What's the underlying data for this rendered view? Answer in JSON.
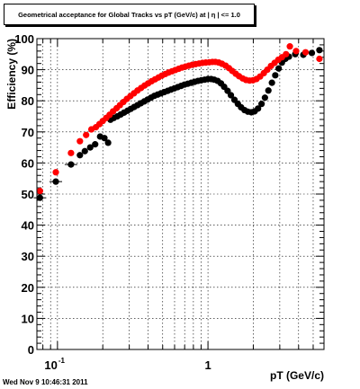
{
  "canvas": {
    "timestamp": "Wed Nov  9 10:46:31 2011"
  },
  "chart_data": {
    "type": "scatter",
    "title": "Geometrical acceptance for Global Tracks vs pT (GeV/c) at |  η  | <= 1.0",
    "xlabel": "pT (GeV/c)",
    "ylabel": "Efficiency (%)",
    "xscale": "log",
    "xlim": [
      0.073,
      5.9
    ],
    "ylim": [
      0,
      100
    ],
    "grid": true,
    "legend": "none",
    "x_ticks": [
      {
        "value": 0.1,
        "base": "10",
        "exp": "-1"
      },
      {
        "value": 1,
        "base": "1",
        "exp": ""
      }
    ],
    "y_ticks": [
      0,
      10,
      20,
      30,
      40,
      50,
      60,
      70,
      80,
      90,
      100
    ],
    "series": [
      {
        "color": "#000000",
        "points": [
          [
            0.0765,
            48.8
          ],
          [
            0.0975,
            54.0
          ],
          [
            0.123,
            59.5
          ],
          [
            0.141,
            62.5
          ],
          [
            0.152,
            63.8
          ],
          [
            0.165,
            65.0
          ],
          [
            0.178,
            66.0
          ],
          [
            0.192,
            68.5
          ],
          [
            0.205,
            68.0
          ],
          [
            0.217,
            66.5
          ],
          [
            0.225,
            73.9
          ],
          [
            0.237,
            74.5
          ],
          [
            0.25,
            75.0
          ],
          [
            0.263,
            75.6
          ],
          [
            0.277,
            76.2
          ],
          [
            0.292,
            76.8
          ],
          [
            0.307,
            77.4
          ],
          [
            0.323,
            78.0
          ],
          [
            0.34,
            78.6
          ],
          [
            0.358,
            79.2
          ],
          [
            0.377,
            79.8
          ],
          [
            0.397,
            80.4
          ],
          [
            0.418,
            81.0
          ],
          [
            0.44,
            81.6
          ],
          [
            0.463,
            82.0
          ],
          [
            0.487,
            82.4
          ],
          [
            0.513,
            82.8
          ],
          [
            0.54,
            83.2
          ],
          [
            0.568,
            83.6
          ],
          [
            0.598,
            84.0
          ],
          [
            0.63,
            84.4
          ],
          [
            0.663,
            84.8
          ],
          [
            0.698,
            85.2
          ],
          [
            0.735,
            85.5
          ],
          [
            0.774,
            85.8
          ],
          [
            0.815,
            86.1
          ],
          [
            0.858,
            86.4
          ],
          [
            0.903,
            86.6
          ],
          [
            0.95,
            86.8
          ],
          [
            1.0,
            87.0
          ],
          [
            1.05,
            87.0
          ],
          [
            1.1,
            86.8
          ],
          [
            1.16,
            86.4
          ],
          [
            1.22,
            85.6
          ],
          [
            1.28,
            84.5
          ],
          [
            1.35,
            83.2
          ],
          [
            1.42,
            81.8
          ],
          [
            1.5,
            80.3
          ],
          [
            1.58,
            79.0
          ],
          [
            1.66,
            77.9
          ],
          [
            1.75,
            77.0
          ],
          [
            1.84,
            76.5
          ],
          [
            1.94,
            76.3
          ],
          [
            2.04,
            76.6
          ],
          [
            2.15,
            77.5
          ],
          [
            2.27,
            79.0
          ],
          [
            2.39,
            81.0
          ],
          [
            2.52,
            83.3
          ],
          [
            2.66,
            85.8
          ],
          [
            2.8,
            88.2
          ],
          [
            2.95,
            90.4
          ],
          [
            3.1,
            92.3
          ],
          [
            3.27,
            93.5
          ],
          [
            3.45,
            94.2
          ],
          [
            3.8,
            95.0
          ],
          [
            4.3,
            94.8
          ],
          [
            4.9,
            95.4
          ],
          [
            5.5,
            96.3
          ]
        ]
      },
      {
        "color": "#ff0000",
        "points": [
          [
            0.0765,
            51.0
          ],
          [
            0.0975,
            57.0
          ],
          [
            0.123,
            63.2
          ],
          [
            0.141,
            67.0
          ],
          [
            0.155,
            69.0
          ],
          [
            0.168,
            70.8
          ],
          [
            0.18,
            71.5
          ],
          [
            0.19,
            72.5
          ],
          [
            0.2,
            73.5
          ],
          [
            0.211,
            74.5
          ],
          [
            0.222,
            75.5
          ],
          [
            0.234,
            76.6
          ],
          [
            0.247,
            77.6
          ],
          [
            0.26,
            78.6
          ],
          [
            0.274,
            79.6
          ],
          [
            0.289,
            80.6
          ],
          [
            0.305,
            81.5
          ],
          [
            0.322,
            82.4
          ],
          [
            0.34,
            83.3
          ],
          [
            0.359,
            84.1
          ],
          [
            0.379,
            84.9
          ],
          [
            0.4,
            85.6
          ],
          [
            0.422,
            86.3
          ],
          [
            0.445,
            86.9
          ],
          [
            0.469,
            87.5
          ],
          [
            0.494,
            88.1
          ],
          [
            0.52,
            88.6
          ],
          [
            0.548,
            89.1
          ],
          [
            0.577,
            89.5
          ],
          [
            0.607,
            89.9
          ],
          [
            0.639,
            90.3
          ],
          [
            0.673,
            90.7
          ],
          [
            0.709,
            91.0
          ],
          [
            0.747,
            91.3
          ],
          [
            0.787,
            91.6
          ],
          [
            0.829,
            91.8
          ],
          [
            0.873,
            92.0
          ],
          [
            0.919,
            92.2
          ],
          [
            0.967,
            92.3
          ],
          [
            1.02,
            92.4
          ],
          [
            1.07,
            92.5
          ],
          [
            1.12,
            92.5
          ],
          [
            1.18,
            92.3
          ],
          [
            1.24,
            91.9
          ],
          [
            1.31,
            91.3
          ],
          [
            1.38,
            90.5
          ],
          [
            1.45,
            89.6
          ],
          [
            1.53,
            88.7
          ],
          [
            1.61,
            87.9
          ],
          [
            1.7,
            87.2
          ],
          [
            1.79,
            86.7
          ],
          [
            1.89,
            86.5
          ],
          [
            1.99,
            86.6
          ],
          [
            2.1,
            87.0
          ],
          [
            2.22,
            87.8
          ],
          [
            2.35,
            88.9
          ],
          [
            2.48,
            90.0
          ],
          [
            2.62,
            91.2
          ],
          [
            2.77,
            92.2
          ],
          [
            2.93,
            93.2
          ],
          [
            3.1,
            94.0
          ],
          [
            3.3,
            95.0
          ],
          [
            3.5,
            97.5
          ],
          [
            3.85,
            96.0
          ],
          [
            4.45,
            95.6
          ],
          [
            5.5,
            93.5
          ]
        ]
      }
    ]
  }
}
